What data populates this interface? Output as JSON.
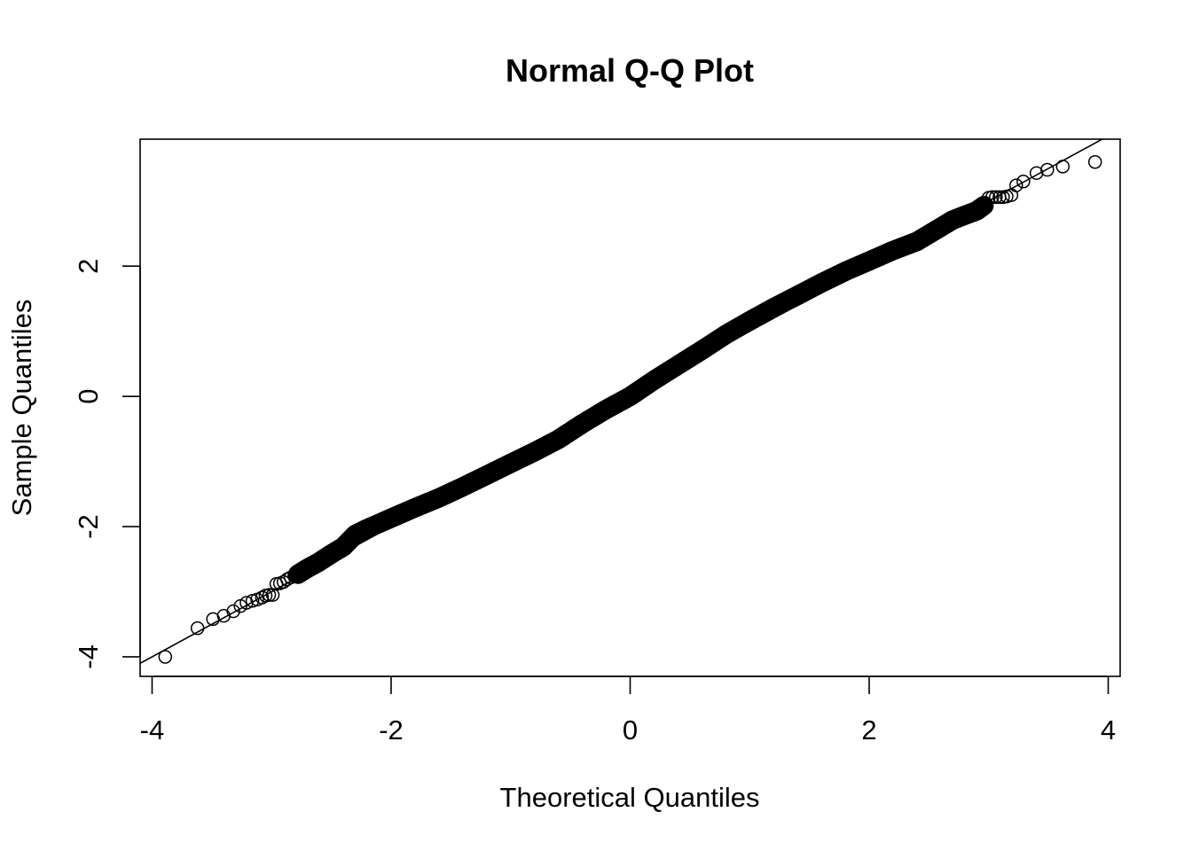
{
  "chart_data": {
    "type": "scatter",
    "title": "Normal Q-Q Plot",
    "xlabel": "Theoretical Quantiles",
    "ylabel": "Sample Quantiles",
    "xlim": [
      -4.1,
      4.1
    ],
    "ylim": [
      -4.3,
      3.95
    ],
    "xticks": [
      -4,
      -2,
      0,
      2,
      4
    ],
    "yticks": [
      -4,
      -2,
      0,
      2
    ],
    "reference_line": {
      "intercept": 0.0,
      "slope": 1.0
    },
    "grid": false,
    "legend": "none",
    "marker": "open-circle",
    "series": [
      {
        "points": [
          [
            -3.89,
            -4.0
          ],
          [
            -3.62,
            -3.56
          ],
          [
            -3.49,
            -3.42
          ],
          [
            -3.4,
            -3.37
          ],
          [
            -3.32,
            -3.3
          ],
          [
            -3.26,
            -3.22
          ],
          [
            -3.21,
            -3.17
          ],
          [
            -3.16,
            -3.14
          ],
          [
            -3.12,
            -3.12
          ],
          [
            -3.08,
            -3.09
          ],
          [
            -3.05,
            -3.06
          ],
          [
            -3.02,
            -3.05
          ],
          [
            -2.99,
            -3.05
          ],
          [
            -2.96,
            -2.88
          ],
          [
            -2.93,
            -2.87
          ],
          [
            -2.9,
            -2.85
          ],
          [
            -2.87,
            -2.81
          ],
          [
            -2.84,
            -2.78
          ],
          [
            -2.81,
            -2.76
          ],
          [
            -2.78,
            -2.73
          ],
          [
            3.0,
            3.05
          ],
          [
            3.03,
            3.06
          ],
          [
            3.06,
            3.06
          ],
          [
            3.09,
            3.06
          ],
          [
            3.12,
            3.06
          ],
          [
            3.15,
            3.07
          ],
          [
            3.19,
            3.09
          ],
          [
            3.23,
            3.24
          ],
          [
            3.29,
            3.3
          ],
          [
            3.4,
            3.43
          ],
          [
            3.49,
            3.48
          ],
          [
            3.62,
            3.53
          ],
          [
            3.89,
            3.6
          ]
        ],
        "bulk_curve": [
          [
            -2.78,
            -2.73
          ],
          [
            -2.7,
            -2.64
          ],
          [
            -2.6,
            -2.54
          ],
          [
            -2.5,
            -2.42
          ],
          [
            -2.4,
            -2.31
          ],
          [
            -2.3,
            -2.12
          ],
          [
            -2.2,
            -2.03
          ],
          [
            -2.1,
            -1.95
          ],
          [
            -2.0,
            -1.87
          ],
          [
            -1.8,
            -1.71
          ],
          [
            -1.6,
            -1.56
          ],
          [
            -1.4,
            -1.39
          ],
          [
            -1.2,
            -1.21
          ],
          [
            -1.0,
            -1.03
          ],
          [
            -0.8,
            -0.85
          ],
          [
            -0.6,
            -0.66
          ],
          [
            -0.4,
            -0.42
          ],
          [
            -0.2,
            -0.2
          ],
          [
            0.0,
            0.0
          ],
          [
            0.2,
            0.25
          ],
          [
            0.4,
            0.48
          ],
          [
            0.6,
            0.71
          ],
          [
            0.8,
            0.95
          ],
          [
            1.0,
            1.16
          ],
          [
            1.2,
            1.36
          ],
          [
            1.4,
            1.55
          ],
          [
            1.6,
            1.74
          ],
          [
            1.8,
            1.92
          ],
          [
            2.0,
            2.08
          ],
          [
            2.2,
            2.24
          ],
          [
            2.4,
            2.38
          ],
          [
            2.6,
            2.6
          ],
          [
            2.7,
            2.71
          ],
          [
            2.8,
            2.78
          ],
          [
            2.9,
            2.85
          ],
          [
            2.96,
            2.93
          ]
        ]
      }
    ]
  }
}
